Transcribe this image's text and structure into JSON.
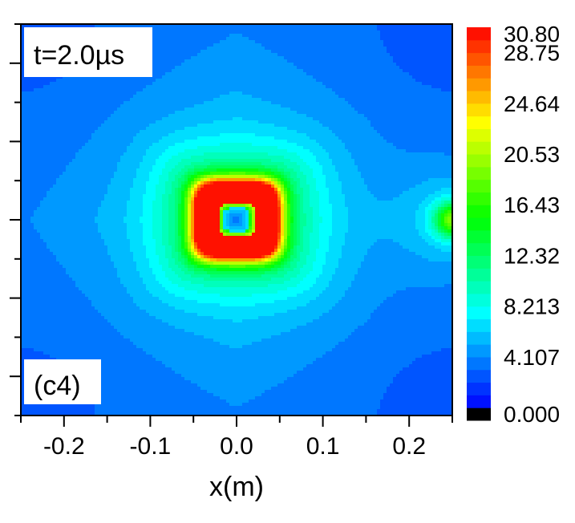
{
  "chart_data": {
    "type": "heatmap",
    "annotations": {
      "time_label": "t=2.0µs",
      "panel_label": "(c4)"
    },
    "x_axis": {
      "label": "x(m)",
      "range": [
        -0.25,
        0.25
      ],
      "ticks": [
        {
          "value": -0.2,
          "label": "-0.2"
        },
        {
          "value": -0.1,
          "label": "-0.1"
        },
        {
          "value": 0.0,
          "label": "0.0"
        },
        {
          "value": 0.1,
          "label": "0.1"
        },
        {
          "value": 0.2,
          "label": "0.2"
        }
      ]
    },
    "y_axis": {
      "label": "",
      "range": [
        -0.25,
        0.25
      ]
    },
    "colorbar": {
      "range": [
        0,
        30.8
      ],
      "labels": [
        "30.80",
        "28.75",
        "24.64",
        "20.53",
        "16.43",
        "12.32",
        "8.213",
        "4.107",
        "0.000"
      ],
      "label_values": [
        30.8,
        28.75,
        24.64,
        20.53,
        16.43,
        12.32,
        8.213,
        4.107,
        0.0
      ],
      "levels": 30,
      "colors": {
        "zero": "#000000",
        "low": "#0000ff",
        "mid": "#00ff00",
        "high_yellow": "#ffff00",
        "max": "#ff0000"
      }
    },
    "field": {
      "description_values": {
        "peak_value": 30.8,
        "peak_ring_half_width": 0.06,
        "center_value": 3.0,
        "background_value": 3.5,
        "right_edge_source_value": 16.0,
        "right_edge_source_y": 0.0
      }
    }
  }
}
